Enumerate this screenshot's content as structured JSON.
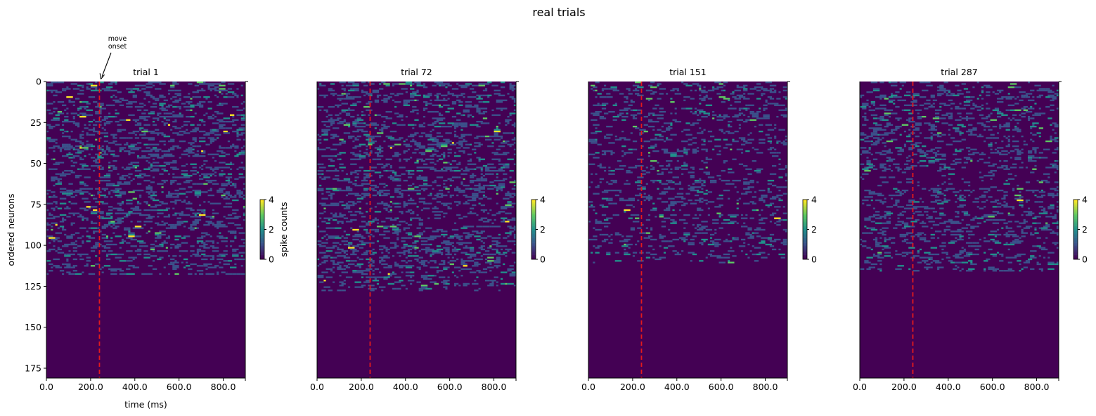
{
  "figure": {
    "title": "real trials"
  },
  "annotation": {
    "text": "move\nonset"
  },
  "colormap": {
    "name": "viridis",
    "stops": [
      "#440154",
      "#3b528b",
      "#21918c",
      "#5ec962",
      "#fde725"
    ]
  },
  "marker_color": "#e41a1c",
  "chart_data": [
    {
      "type": "heatmap",
      "title": "trial 1",
      "xlabel": "time (ms)",
      "ylabel": "ordered neurons",
      "xlim": [
        0,
        900
      ],
      "ylim": [
        181,
        0
      ],
      "xticks": [
        0,
        200,
        400,
        600,
        800
      ],
      "xtick_labels": [
        "0.0",
        "200.0",
        "400.0",
        "600.0",
        "800.0"
      ],
      "yticks": [
        0,
        25,
        50,
        75,
        100,
        125,
        150,
        175
      ],
      "ytick_labels": [
        "0",
        "25",
        "50",
        "75",
        "100",
        "125",
        "150",
        "175"
      ],
      "n_neurons": 181,
      "bin_ms": 10,
      "active_neurons": 118,
      "density": 0.18,
      "seed": 11,
      "vline_ms": 240,
      "colorbar": {
        "label": "spike counts",
        "ticks": [
          "0",
          "2",
          "4"
        ],
        "range": [
          0,
          4
        ]
      }
    },
    {
      "type": "heatmap",
      "title": "trial 72",
      "xlabel": "",
      "ylabel": "",
      "xlim": [
        0,
        900
      ],
      "ylim": [
        181,
        0
      ],
      "xticks": [
        0,
        200,
        400,
        600,
        800
      ],
      "xtick_labels": [
        "0.0",
        "200.0",
        "400.0",
        "600.0",
        "800.0"
      ],
      "n_neurons": 181,
      "bin_ms": 10,
      "active_neurons": 128,
      "density": 0.17,
      "seed": 72,
      "vline_ms": 240,
      "colorbar": {
        "label": "",
        "ticks": [
          "0",
          "2",
          "4"
        ],
        "range": [
          0,
          4
        ]
      }
    },
    {
      "type": "heatmap",
      "title": "trial 151",
      "xlabel": "",
      "ylabel": "",
      "xlim": [
        0,
        900
      ],
      "ylim": [
        181,
        0
      ],
      "xticks": [
        0,
        200,
        400,
        600,
        800
      ],
      "xtick_labels": [
        "0.0",
        "200.0",
        "400.0",
        "600.0",
        "800.0"
      ],
      "n_neurons": 181,
      "bin_ms": 10,
      "active_neurons": 111,
      "density": 0.12,
      "seed": 151,
      "vline_ms": 240,
      "colorbar": {
        "label": "",
        "ticks": [
          "0",
          "2",
          "4"
        ],
        "range": [
          0,
          4
        ]
      }
    },
    {
      "type": "heatmap",
      "title": "trial 287",
      "xlabel": "",
      "ylabel": "",
      "xlim": [
        0,
        900
      ],
      "ylim": [
        181,
        0
      ],
      "xticks": [
        0,
        200,
        400,
        600,
        800
      ],
      "xtick_labels": [
        "0.0",
        "200.0",
        "400.0",
        "600.0",
        "800.0"
      ],
      "n_neurons": 181,
      "bin_ms": 10,
      "active_neurons": 116,
      "density": 0.13,
      "seed": 287,
      "vline_ms": 240,
      "colorbar": {
        "label": "",
        "ticks": [
          "0",
          "2",
          "4"
        ],
        "range": [
          0,
          4
        ]
      }
    }
  ]
}
